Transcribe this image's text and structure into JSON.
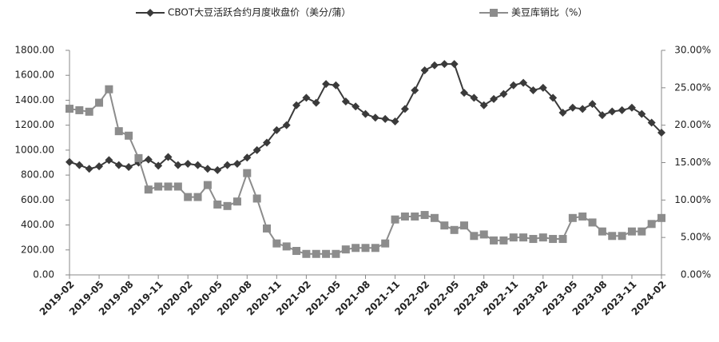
{
  "chart_data": {
    "type": "line",
    "categories": [
      "2019-02",
      null,
      null,
      "2019-05",
      null,
      null,
      "2019-08",
      null,
      null,
      "2019-11",
      null,
      null,
      "2020-02",
      null,
      null,
      "2020-05",
      null,
      null,
      "2020-08",
      null,
      null,
      "2020-11",
      null,
      null,
      "2021-02",
      null,
      null,
      "2021-05",
      null,
      null,
      "2021-08",
      null,
      null,
      "2021-11",
      null,
      null,
      "2022-02",
      null,
      null,
      "2022-05",
      null,
      null,
      "2022-08",
      null,
      null,
      "2022-11",
      null,
      null,
      "2023-02",
      null,
      null,
      "2023-05",
      null,
      null,
      "2023-08",
      null,
      null,
      "2023-11",
      null,
      null,
      "2024-02"
    ],
    "series": [
      {
        "name": "CBOT大豆活跃合约月度收盘价（美分/蒲）",
        "color": "#3a3a3a",
        "marker": "diamond",
        "values": [
          905,
          880,
          850,
          870,
          920,
          880,
          865,
          900,
          925,
          875,
          945,
          880,
          890,
          880,
          850,
          840,
          880,
          890,
          940,
          1000,
          1060,
          1160,
          1200,
          1360,
          1420,
          1380,
          1530,
          1520,
          1390,
          1350,
          1290,
          1260,
          1250,
          1230,
          1330,
          1480,
          1640,
          1680,
          1690,
          1690,
          1460,
          1420,
          1360,
          1410,
          1450,
          1520,
          1540,
          1480,
          1500,
          1420,
          1300,
          1340,
          1330,
          1370,
          1280,
          1310,
          1320,
          1340,
          1290,
          1220,
          1140
        ]
      },
      {
        "name": "美豆库销比（%）",
        "color": "#8c8c8c",
        "marker": "square",
        "axis": "y2",
        "values": [
          22.2,
          22.0,
          21.8,
          23.0,
          24.8,
          19.2,
          18.6,
          15.6,
          11.4,
          11.8,
          11.8,
          11.8,
          10.4,
          10.4,
          12.0,
          9.4,
          9.2,
          9.8,
          13.6,
          10.2,
          6.2,
          4.2,
          3.8,
          3.2,
          2.8,
          2.8,
          2.8,
          2.8,
          3.4,
          3.6,
          3.6,
          3.6,
          4.2,
          7.4,
          7.8,
          7.8,
          8.0,
          7.6,
          6.6,
          6.0,
          6.6,
          5.2,
          5.4,
          4.6,
          4.6,
          5.0,
          5.0,
          4.8,
          5.0,
          4.8,
          4.8,
          7.6,
          7.8,
          7.0,
          5.8,
          5.2,
          5.2,
          5.8,
          5.8,
          6.8,
          7.6
        ]
      }
    ],
    "ylim": [
      0,
      1800
    ],
    "yticks": [
      {
        "value": 0,
        "label": "0.00"
      },
      {
        "value": 200,
        "label": "200.00"
      },
      {
        "value": 400,
        "label": "400.00"
      },
      {
        "value": 600,
        "label": "600.00"
      },
      {
        "value": 800,
        "label": "800.00"
      },
      {
        "value": 1000,
        "label": "1000.00"
      },
      {
        "value": 1200,
        "label": "1200.00"
      },
      {
        "value": 1400,
        "label": "1400.00"
      },
      {
        "value": 1600,
        "label": "1600.00"
      },
      {
        "value": 1800,
        "label": "1800.00"
      }
    ],
    "y2lim": [
      0,
      30
    ],
    "y2ticks": [
      {
        "value": 0,
        "label": "0.00%"
      },
      {
        "value": 5,
        "label": "5.00%"
      },
      {
        "value": 10,
        "label": "10.00%"
      },
      {
        "value": 15,
        "label": "15.00%"
      },
      {
        "value": 20,
        "label": "20.00%"
      },
      {
        "value": 25,
        "label": "25.00%"
      },
      {
        "value": 30,
        "label": "30.00%"
      }
    ],
    "grid": false,
    "legend": "top"
  }
}
